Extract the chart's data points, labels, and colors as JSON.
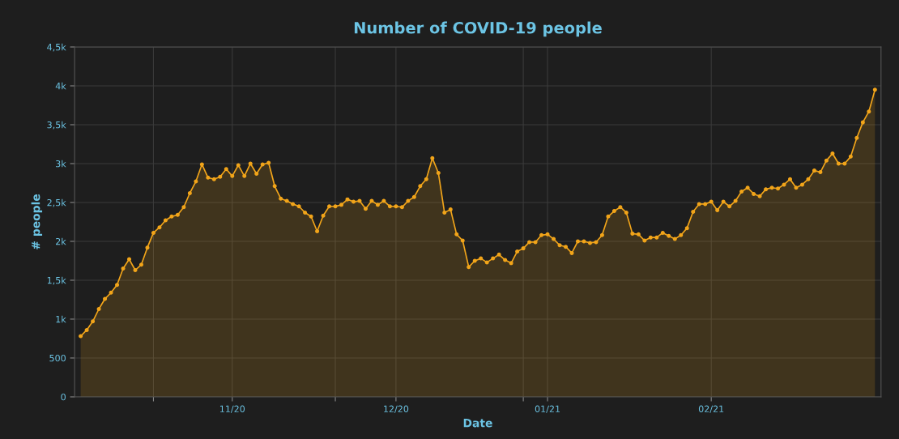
{
  "chart_data": {
    "type": "area",
    "title": "Number of COVID-19 people",
    "xlabel": "Date",
    "ylabel": "# people",
    "x": [
      "2020-10-20",
      "2020-10-21",
      "2020-10-22",
      "2020-10-23",
      "2020-10-24",
      "2020-10-25",
      "2020-10-26",
      "2020-10-27",
      "2020-10-28",
      "2020-10-29",
      "2020-10-30",
      "2020-10-31",
      "2020-11-01",
      "2020-11-02",
      "2020-11-03",
      "2020-11-04",
      "2020-11-05",
      "2020-11-06",
      "2020-11-07",
      "2020-11-08",
      "2020-11-09",
      "2020-11-10",
      "2020-11-11",
      "2020-11-12",
      "2020-11-13",
      "2020-11-14",
      "2020-11-15",
      "2020-11-16",
      "2020-11-17",
      "2020-11-18",
      "2020-11-19",
      "2020-11-20",
      "2020-11-21",
      "2020-11-22",
      "2020-11-23",
      "2020-11-24",
      "2020-11-25",
      "2020-11-26",
      "2020-11-27",
      "2020-11-28",
      "2020-11-29",
      "2020-11-30",
      "2020-12-01",
      "2020-12-02",
      "2020-12-03",
      "2020-12-04",
      "2020-12-05",
      "2020-12-06",
      "2020-12-07",
      "2020-12-08",
      "2020-12-09",
      "2020-12-10",
      "2020-12-11",
      "2020-12-12",
      "2020-12-13",
      "2020-12-14",
      "2020-12-15",
      "2020-12-16",
      "2020-12-17",
      "2020-12-18",
      "2020-12-19",
      "2020-12-20",
      "2020-12-21",
      "2020-12-22",
      "2020-12-23",
      "2020-12-24",
      "2020-12-25",
      "2020-12-26",
      "2020-12-27",
      "2020-12-28",
      "2020-12-29",
      "2020-12-30",
      "2020-12-31",
      "2021-01-01",
      "2021-01-02",
      "2021-01-03",
      "2021-01-04",
      "2021-01-05",
      "2021-01-06",
      "2021-01-07",
      "2021-01-08",
      "2021-01-09",
      "2021-01-10",
      "2021-01-11",
      "2021-01-12",
      "2021-01-13",
      "2021-01-14",
      "2021-01-15",
      "2021-01-16",
      "2021-01-17",
      "2021-01-18",
      "2021-01-19",
      "2021-01-20",
      "2021-01-21",
      "2021-01-22",
      "2021-01-23",
      "2021-01-24",
      "2021-01-25",
      "2021-01-26",
      "2021-01-27",
      "2021-01-28",
      "2021-01-29",
      "2021-01-30",
      "2021-01-31",
      "2021-02-01",
      "2021-02-02",
      "2021-02-03",
      "2021-02-04",
      "2021-02-05",
      "2021-02-06",
      "2021-02-07",
      "2021-02-08",
      "2021-02-09",
      "2021-02-10",
      "2021-02-11",
      "2021-02-12",
      "2021-02-13",
      "2021-02-14",
      "2021-02-15",
      "2021-02-16",
      "2021-02-17",
      "2021-02-18",
      "2021-02-19",
      "2021-02-20",
      "2021-02-21",
      "2021-02-22",
      "2021-02-23",
      "2021-02-24",
      "2021-02-25",
      "2021-02-26",
      "2021-02-27",
      "2021-02-28"
    ],
    "series": [
      {
        "color": "#f2a51a",
        "values": [
          780,
          860,
          970,
          1130,
          1260,
          1340,
          1440,
          1650,
          1770,
          1630,
          1700,
          1920,
          2110,
          2180,
          2270,
          2320,
          2340,
          2440,
          2620,
          2770,
          2990,
          2820,
          2800,
          2830,
          2930,
          2840,
          2980,
          2840,
          3000,
          2870,
          2990,
          3010,
          2710,
          2550,
          2520,
          2480,
          2450,
          2370,
          2320,
          2130,
          2330,
          2450,
          2450,
          2470,
          2540,
          2510,
          2520,
          2420,
          2520,
          2470,
          2520,
          2450,
          2450,
          2440,
          2520,
          2570,
          2710,
          2800,
          3070,
          2880,
          2370,
          2410,
          2090,
          2010,
          1670,
          1750,
          1780,
          1730,
          1780,
          1830,
          1760,
          1720,
          1870,
          1910,
          1990,
          1990,
          2080,
          2090,
          2030,
          1950,
          1930,
          1850,
          2000,
          2000,
          1980,
          1990,
          2080,
          2320,
          2390,
          2440,
          2370,
          2100,
          2090,
          2010,
          2050,
          2050,
          2110,
          2070,
          2030,
          2080,
          2170,
          2380,
          2480,
          2480,
          2510,
          2400,
          2510,
          2450,
          2520,
          2640,
          2690,
          2610,
          2580,
          2670,
          2690,
          2680,
          2730,
          2800,
          2690,
          2730,
          2800,
          2910,
          2890,
          3040,
          3130,
          3000,
          3000,
          3090,
          3330,
          3530,
          3670,
          3950
        ]
      }
    ],
    "xlim": [
      "2020-10-19",
      "2021-03-01"
    ],
    "xticks": [
      {
        "value": "2020-11-01",
        "label": null
      },
      {
        "value": "2020-11-14",
        "label": "11/20"
      },
      {
        "value": "2020-12-01",
        "label": null
      },
      {
        "value": "2020-12-11",
        "label": "12/20"
      },
      {
        "value": "2021-01-01",
        "label": null
      },
      {
        "value": "2021-01-05",
        "label": "01/21"
      },
      {
        "value": "2021-02-01",
        "label": "02/21"
      }
    ],
    "ylim": [
      0,
      4500
    ],
    "yticks": [
      0,
      500,
      {
        "value": 1000,
        "label": "1k"
      },
      {
        "value": 1500,
        "label": "1,5k"
      },
      {
        "value": 2000,
        "label": "2k"
      },
      {
        "value": 2500,
        "label": "2,5k"
      },
      {
        "value": 3000,
        "label": "3k"
      },
      {
        "value": 3500,
        "label": "3,5k"
      },
      {
        "value": 4000,
        "label": "4k"
      },
      {
        "value": 4500,
        "label": "4,5k"
      }
    ],
    "grid": true,
    "marker": "circle",
    "line_style": "solid"
  }
}
